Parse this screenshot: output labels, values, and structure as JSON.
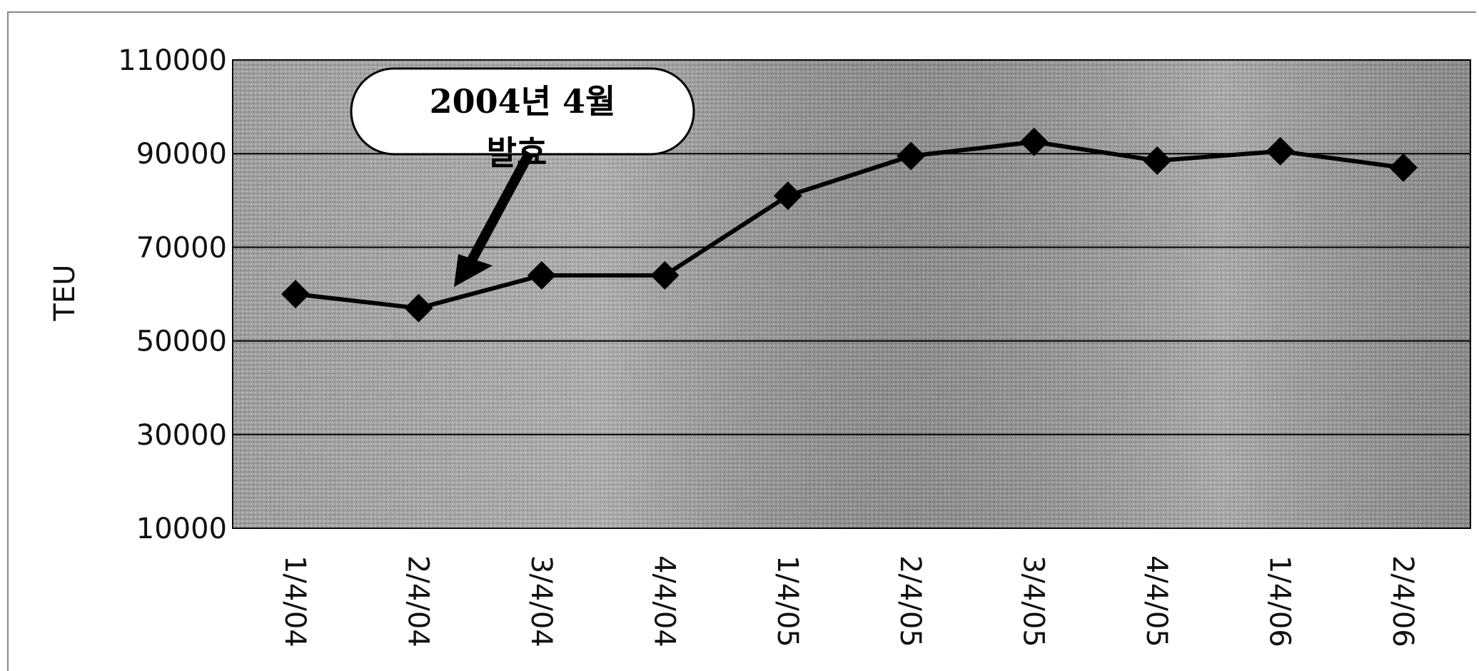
{
  "chart_data": {
    "type": "line",
    "title": "",
    "xlabel": "",
    "ylabel": "TEU",
    "ylim": [
      10000,
      110000
    ],
    "yticks": [
      10000,
      30000,
      50000,
      70000,
      90000,
      110000
    ],
    "categories": [
      "1/4/04",
      "2/4/04",
      "3/4/04",
      "4/4/04",
      "1/4/05",
      "2/4/05",
      "3/4/05",
      "4/4/05",
      "1/4/06",
      "2/4/06"
    ],
    "series": [
      {
        "values": [
          60000,
          57000,
          64000,
          64000,
          81000,
          89500,
          92500,
          88500,
          90500,
          87000
        ]
      }
    ],
    "grid": true,
    "annotation": {
      "text": "2004년 4월",
      "text_line2": "발효",
      "target_category": "2/4/04"
    },
    "colors": {
      "plot_background": "#9a9a9a",
      "line": "#000000",
      "marker": "#000000"
    }
  }
}
